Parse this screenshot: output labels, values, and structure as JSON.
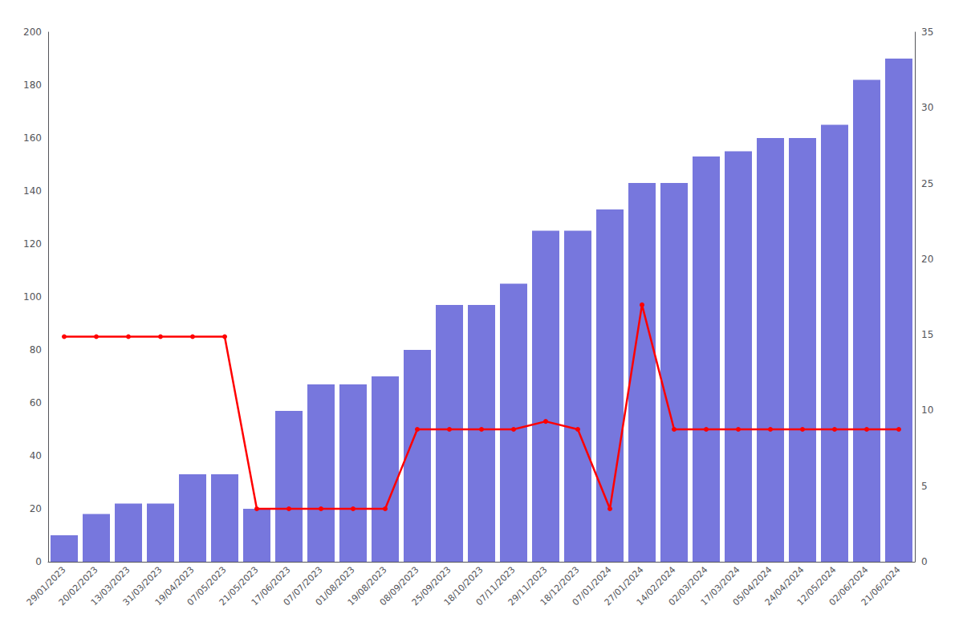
{
  "chart_data": {
    "type": "bar",
    "categories": [
      "29/01/2023",
      "20/02/2023",
      "13/03/2023",
      "31/03/2023",
      "19/04/2023",
      "07/05/2023",
      "21/05/2023",
      "17/06/2023",
      "07/07/2023",
      "01/08/2023",
      "19/08/2023",
      "08/09/2023",
      "25/09/2023",
      "18/10/2023",
      "07/11/2023",
      "29/11/2023",
      "18/12/2023",
      "07/01/2024",
      "27/01/2024",
      "14/02/2024",
      "02/03/2024",
      "17/03/2024",
      "05/04/2024",
      "24/04/2024",
      "12/05/2024",
      "02/06/2024",
      "21/06/2024"
    ],
    "series": [
      {
        "type": "bar",
        "color": "#7777dd",
        "values": [
          10,
          18,
          22,
          22,
          33,
          33,
          20,
          57,
          67,
          67,
          70,
          80,
          97,
          97,
          105,
          125,
          125,
          133,
          143,
          143,
          153,
          155,
          160,
          160,
          165,
          182,
          190
        ]
      },
      {
        "type": "line",
        "color": "#ff0000",
        "marker": "circle",
        "values": [
          85,
          85,
          85,
          85,
          85,
          85,
          20,
          20,
          20,
          20,
          20,
          50,
          50,
          50,
          50,
          53,
          50,
          20,
          97,
          50,
          50,
          50,
          50,
          50,
          50,
          50,
          50
        ]
      }
    ],
    "ylim": [
      0,
      200
    ],
    "yticks": [
      0,
      20,
      40,
      60,
      80,
      100,
      120,
      140,
      160,
      180,
      200
    ],
    "y2lim": [
      0,
      35
    ],
    "y2ticks": [
      0,
      5,
      10,
      15,
      20,
      25,
      30,
      35
    ],
    "grid": false
  }
}
